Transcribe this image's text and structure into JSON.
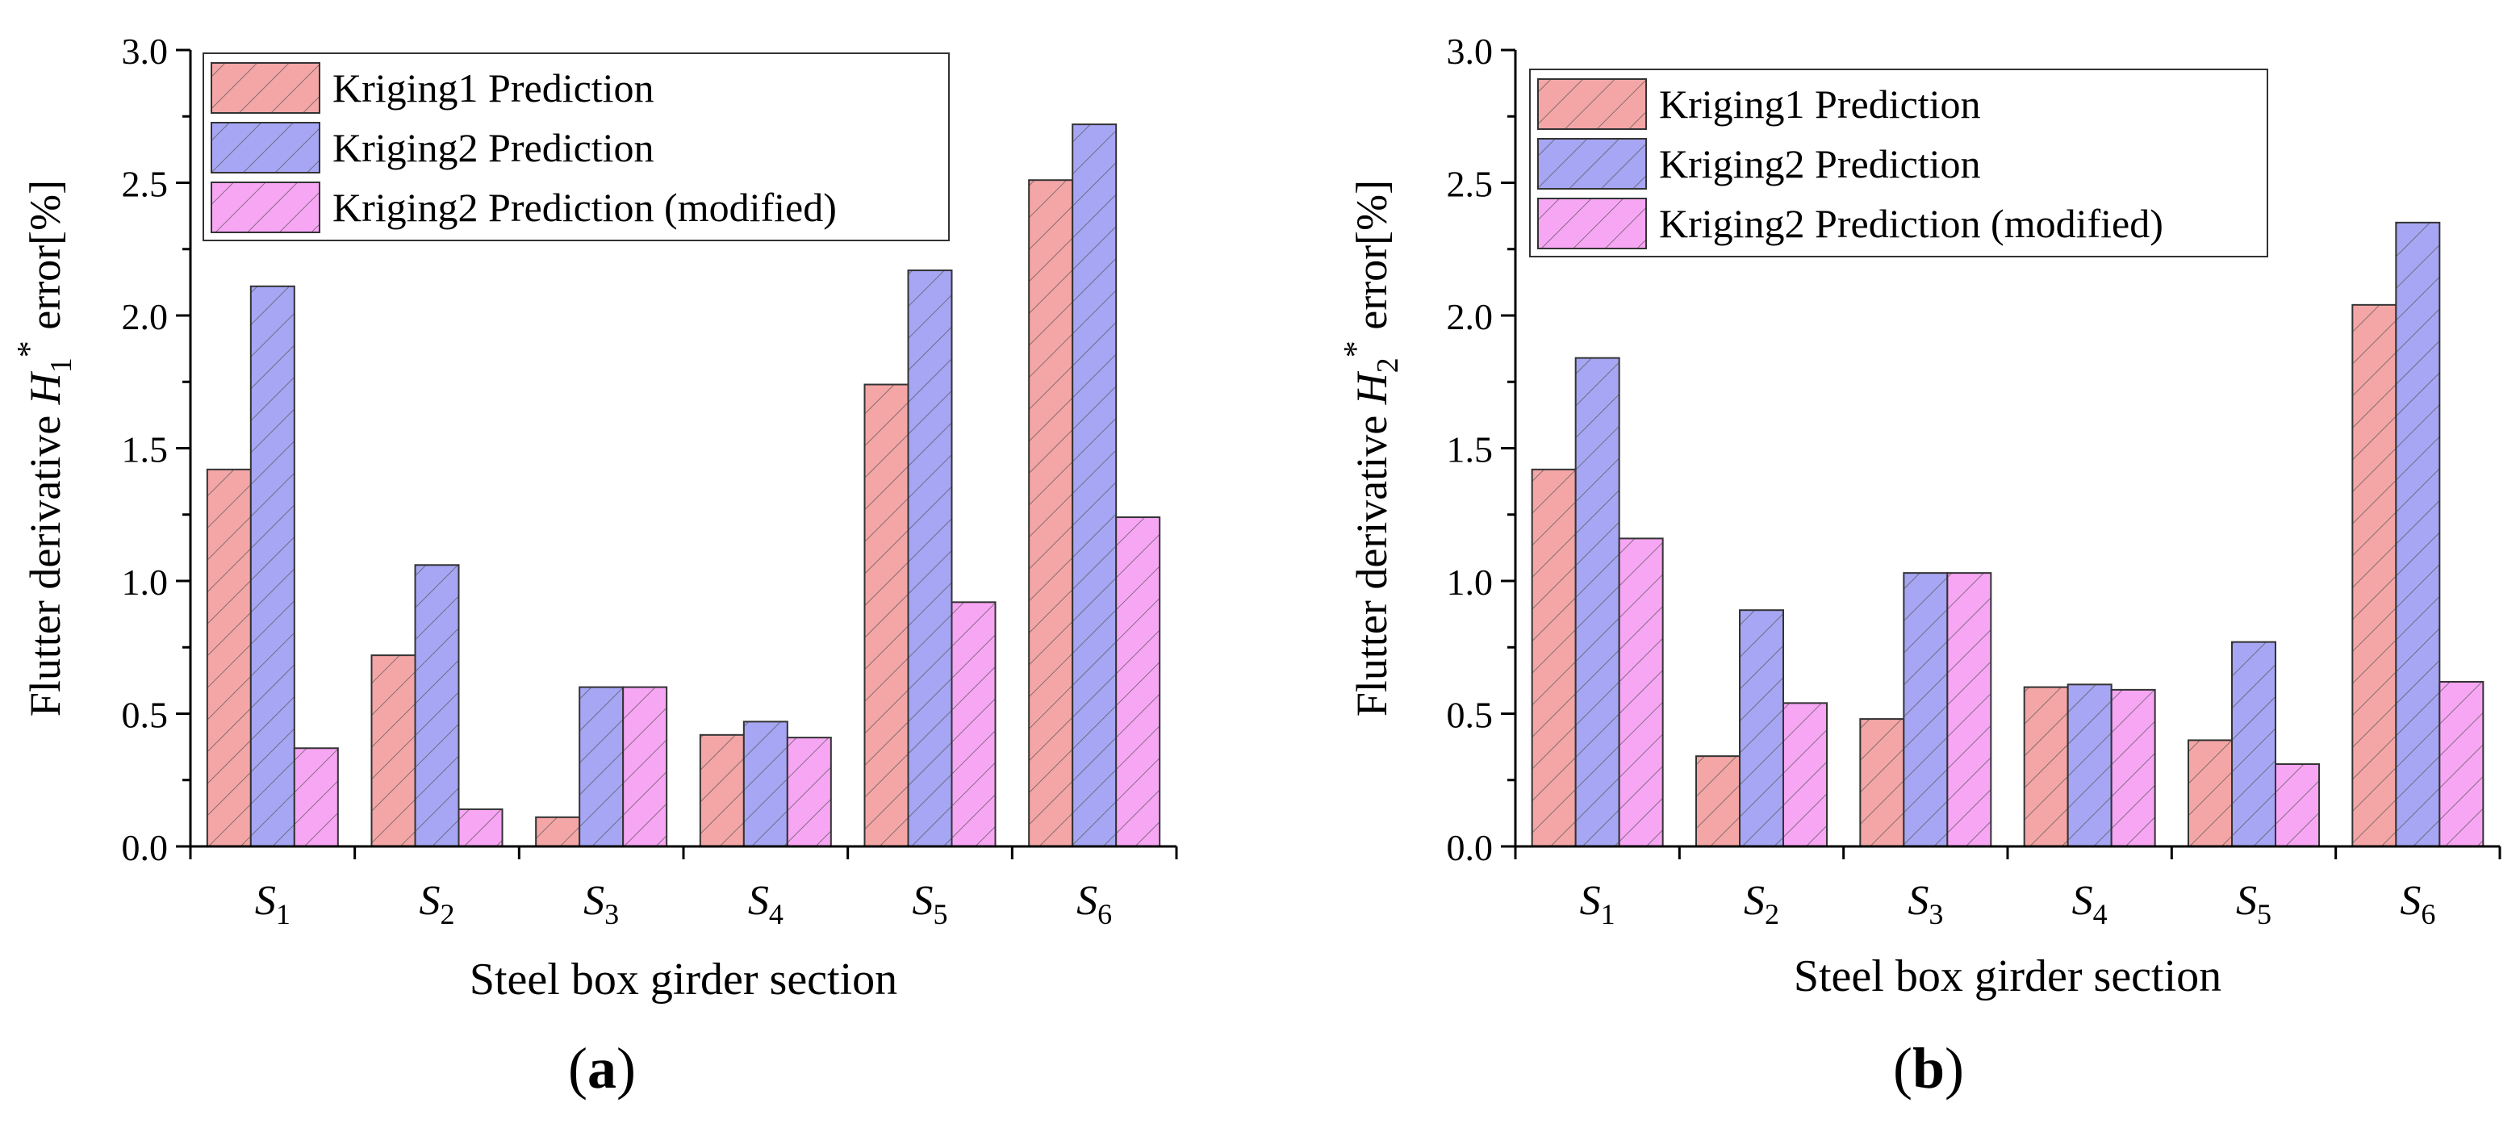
{
  "panels": [
    {
      "panel_label": "a",
      "ylabel_prefix": "Flutter derivative ",
      "ylabel_symbol": "H",
      "ylabel_sub": "1",
      "ylabel_sup": "*",
      "ylabel_suffix": " error[%]",
      "xlabel": "Steel box girder section"
    },
    {
      "panel_label": "b",
      "ylabel_prefix": "Flutter derivative ",
      "ylabel_symbol": "H",
      "ylabel_sub": "2",
      "ylabel_sup": "*",
      "ylabel_suffix": " error[%]",
      "xlabel": "Steel box girder section"
    }
  ],
  "colors": {
    "kriging1": "#f4a6a6",
    "kriging2": "#a6a6f4",
    "kriging2_modified": "#f7a6f4",
    "hatch": "#555555",
    "axis": "#000000"
  },
  "chart_data": [
    {
      "type": "bar",
      "title": "",
      "categories": [
        "S1",
        "S2",
        "S3",
        "S4",
        "S5",
        "S6"
      ],
      "category_symbol": "S",
      "category_subscripts": [
        "1",
        "2",
        "3",
        "4",
        "5",
        "6"
      ],
      "xlabel": "Steel box girder section",
      "ylabel": "Flutter derivative H1* error[%]",
      "ylim": [
        0,
        3.0
      ],
      "yticks": [
        0.0,
        0.5,
        1.0,
        1.5,
        2.0,
        2.5,
        3.0
      ],
      "ytick_labels": [
        "0.0",
        "0.5",
        "1.0",
        "1.5",
        "2.0",
        "2.5",
        "3.0"
      ],
      "legend_position": "top-left",
      "series": [
        {
          "name": "Kriging1 Prediction",
          "values": [
            1.42,
            0.72,
            0.11,
            0.42,
            1.74,
            2.51
          ]
        },
        {
          "name": "Kriging2 Prediction",
          "values": [
            2.11,
            1.06,
            0.6,
            0.47,
            2.17,
            2.72
          ]
        },
        {
          "name": "Kriging2 Prediction (modified)",
          "values": [
            0.37,
            0.14,
            0.6,
            0.41,
            0.92,
            1.24
          ]
        }
      ]
    },
    {
      "type": "bar",
      "title": "",
      "categories": [
        "S1",
        "S2",
        "S3",
        "S4",
        "S5",
        "S6"
      ],
      "category_symbol": "S",
      "category_subscripts": [
        "1",
        "2",
        "3",
        "4",
        "5",
        "6"
      ],
      "xlabel": "Steel box girder section",
      "ylabel": "Flutter derivative H2* error[%]",
      "ylim": [
        0,
        3.0
      ],
      "yticks": [
        0.0,
        0.5,
        1.0,
        1.5,
        2.0,
        2.5,
        3.0
      ],
      "ytick_labels": [
        "0.0",
        "0.5",
        "1.0",
        "1.5",
        "2.0",
        "2.5",
        "3.0"
      ],
      "legend_position": "top-left",
      "series": [
        {
          "name": "Kriging1 Prediction",
          "values": [
            1.42,
            0.34,
            0.48,
            0.6,
            0.4,
            2.04
          ]
        },
        {
          "name": "Kriging2 Prediction",
          "values": [
            1.84,
            0.89,
            1.03,
            0.61,
            0.77,
            2.35
          ]
        },
        {
          "name": "Kriging2 Prediction (modified)",
          "values": [
            1.16,
            0.54,
            1.03,
            0.59,
            0.31,
            0.62
          ]
        }
      ]
    }
  ]
}
